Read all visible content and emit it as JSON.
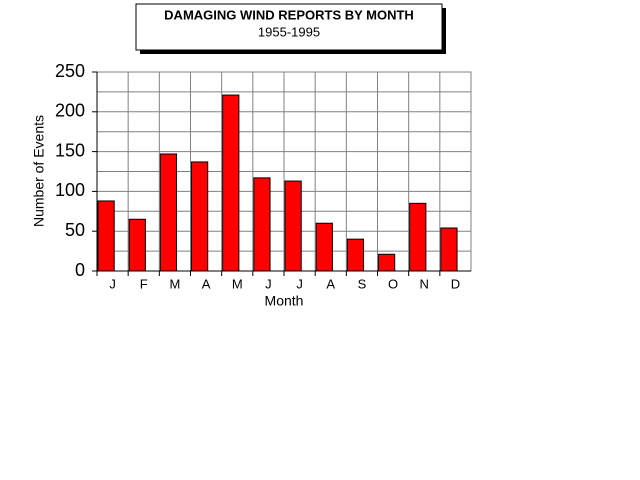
{
  "chart_data": {
    "type": "bar",
    "title": "DAMAGING WIND REPORTS BY MONTH",
    "subtitle": "1955-1995",
    "x_label": "Month",
    "y_label": "Number of Events",
    "categories": [
      "J",
      "F",
      "M",
      "A",
      "M",
      "J",
      "J",
      "A",
      "S",
      "O",
      "N",
      "D"
    ],
    "values": [
      88,
      65,
      147,
      137,
      221,
      117,
      113,
      60,
      40,
      21,
      85,
      54
    ],
    "color": "#ff0000",
    "ylim": [
      0,
      250
    ],
    "yticks": [
      0,
      50,
      100,
      150,
      200,
      250
    ],
    "grid_lines": [
      0,
      25,
      50,
      75,
      100,
      125,
      150,
      175,
      200,
      225,
      250
    ],
    "grid": true
  }
}
